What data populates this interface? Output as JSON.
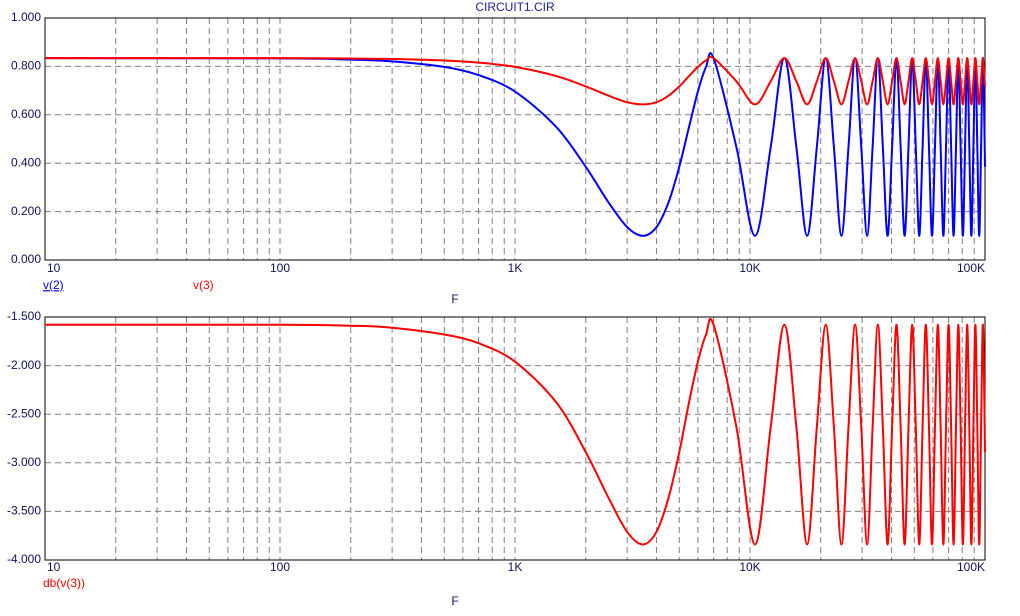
{
  "chart_data": [
    {
      "type": "line",
      "title": "CIRCUIT1.CIR",
      "xlabel": "F",
      "log_x": true,
      "grid": true,
      "xlim": [
        10,
        100000
      ],
      "xticks": [
        {
          "value": 10,
          "label": "10"
        },
        {
          "value": 100,
          "label": "100"
        },
        {
          "value": 1000,
          "label": "1K"
        },
        {
          "value": 10000,
          "label": "10K"
        },
        {
          "value": 100000,
          "label": "100K"
        }
      ],
      "xminorticks": [
        20,
        30,
        40,
        50,
        60,
        70,
        80,
        90,
        200,
        300,
        400,
        500,
        600,
        700,
        800,
        900,
        2000,
        3000,
        4000,
        5000,
        6000,
        7000,
        8000,
        9000,
        20000,
        30000,
        40000,
        50000,
        60000,
        70000,
        80000,
        90000
      ],
      "ylim": [
        0,
        1
      ],
      "yticks": [
        {
          "value": 0,
          "label": "0.000"
        },
        {
          "value": 0.2,
          "label": "0.200"
        },
        {
          "value": 0.4,
          "label": "0.400"
        },
        {
          "value": 0.6,
          "label": "0.600"
        },
        {
          "value": 0.8,
          "label": "0.800"
        },
        {
          "value": 1,
          "label": "1.000"
        }
      ],
      "x": [
        10,
        100,
        200,
        300,
        500,
        700,
        1000,
        1500,
        2000,
        2500,
        3000,
        3500,
        4000,
        4500,
        5000,
        5500,
        6000,
        6500,
        7000,
        8750,
        10500,
        12250,
        14000,
        15750,
        17500,
        19250,
        21000,
        22750,
        24500,
        26250,
        28000,
        29750,
        31500,
        33250,
        35000,
        36750,
        38500,
        40250,
        42000,
        43750,
        45500,
        47250,
        49000,
        50750,
        52500,
        54250,
        56000,
        57750,
        59500,
        61250,
        63000,
        64750,
        66500,
        68250,
        70000,
        71750,
        73500,
        75250,
        77000,
        78750,
        80500,
        82250,
        84000,
        85750,
        87500,
        89250,
        91000,
        92750,
        94500,
        96250,
        98000,
        100000
      ],
      "series": [
        {
          "name": "v(2)",
          "color": "#0000ff",
          "values": [
            0.834,
            0.833,
            0.828,
            0.821,
            0.798,
            0.764,
            0.696,
            0.549,
            0.385,
            0.238,
            0.136,
            0.1,
            0.136,
            0.238,
            0.385,
            0.549,
            0.696,
            0.798,
            0.834,
            0.467,
            0.1,
            0.467,
            0.834,
            0.467,
            0.1,
            0.467,
            0.834,
            0.467,
            0.1,
            0.467,
            0.834,
            0.467,
            0.1,
            0.467,
            0.834,
            0.467,
            0.1,
            0.467,
            0.834,
            0.467,
            0.1,
            0.467,
            0.834,
            0.467,
            0.1,
            0.467,
            0.834,
            0.467,
            0.1,
            0.467,
            0.834,
            0.467,
            0.1,
            0.467,
            0.834,
            0.467,
            0.1,
            0.467,
            0.834,
            0.467,
            0.1,
            0.467,
            0.834,
            0.467,
            0.1,
            0.467,
            0.834,
            0.467,
            0.1,
            0.467,
            0.834,
            0.385
          ]
        },
        {
          "name": "v(3)",
          "color": "#ff0000",
          "values": [
            0.834,
            0.834,
            0.8325,
            0.8306,
            0.8245,
            0.8158,
            0.798,
            0.76,
            0.717,
            0.679,
            0.652,
            0.643,
            0.652,
            0.679,
            0.717,
            0.76,
            0.798,
            0.8245,
            0.834,
            0.7385,
            0.643,
            0.7385,
            0.834,
            0.7385,
            0.643,
            0.7385,
            0.834,
            0.7385,
            0.643,
            0.7385,
            0.834,
            0.7385,
            0.643,
            0.7385,
            0.834,
            0.7385,
            0.643,
            0.7385,
            0.834,
            0.7385,
            0.643,
            0.7385,
            0.834,
            0.7385,
            0.643,
            0.7385,
            0.834,
            0.7385,
            0.643,
            0.7385,
            0.834,
            0.7385,
            0.643,
            0.7385,
            0.834,
            0.7385,
            0.643,
            0.7385,
            0.834,
            0.7385,
            0.643,
            0.7385,
            0.834,
            0.7385,
            0.643,
            0.7385,
            0.834,
            0.7385,
            0.643,
            0.7385,
            0.834,
            0.717
          ]
        }
      ]
    },
    {
      "type": "line",
      "xlabel": "F",
      "log_x": true,
      "grid": true,
      "xlim": [
        10,
        100000
      ],
      "xticks": [
        {
          "value": 10,
          "label": "10"
        },
        {
          "value": 100,
          "label": "100"
        },
        {
          "value": 1000,
          "label": "1K"
        },
        {
          "value": 10000,
          "label": "10K"
        },
        {
          "value": 100000,
          "label": "100K"
        }
      ],
      "xminorticks": [
        20,
        30,
        40,
        50,
        60,
        70,
        80,
        90,
        200,
        300,
        400,
        500,
        600,
        700,
        800,
        900,
        2000,
        3000,
        4000,
        5000,
        6000,
        7000,
        8000,
        9000,
        20000,
        30000,
        40000,
        50000,
        60000,
        70000,
        80000,
        90000
      ],
      "ylim": [
        -4,
        -1.5
      ],
      "yticks": [
        {
          "value": -4,
          "label": "-4.000"
        },
        {
          "value": -3.5,
          "label": "-3.500"
        },
        {
          "value": -3,
          "label": "-3.000"
        },
        {
          "value": -2.5,
          "label": "-2.500"
        },
        {
          "value": -2,
          "label": "-2.000"
        },
        {
          "value": -1.5,
          "label": "-1.500"
        }
      ],
      "x": [
        10,
        100,
        200,
        300,
        500,
        700,
        1000,
        1500,
        2000,
        2500,
        3000,
        3500,
        4000,
        4500,
        5000,
        5500,
        6000,
        6500,
        7000,
        8750,
        10500,
        12250,
        14000,
        15750,
        17500,
        19250,
        21000,
        22750,
        24500,
        26250,
        28000,
        29750,
        31500,
        33250,
        35000,
        36750,
        38500,
        40250,
        42000,
        43750,
        45500,
        47250,
        49000,
        50750,
        52500,
        54250,
        56000,
        57750,
        59500,
        61250,
        63000,
        64750,
        66500,
        68250,
        70000,
        71750,
        73500,
        75250,
        77000,
        78750,
        80500,
        82250,
        84000,
        85750,
        87500,
        89250,
        91000,
        92750,
        94500,
        96250,
        98000,
        100000
      ],
      "series": [
        {
          "name": "db(v(3))",
          "color": "#ff0000",
          "values": [
            -1.58,
            -1.58,
            -1.59,
            -1.61,
            -1.68,
            -1.77,
            -1.96,
            -2.38,
            -2.89,
            -3.36,
            -3.71,
            -3.84,
            -3.71,
            -3.36,
            -2.89,
            -2.38,
            -1.96,
            -1.68,
            -1.58,
            -2.63,
            -3.84,
            -2.63,
            -1.58,
            -2.63,
            -3.84,
            -2.63,
            -1.58,
            -2.63,
            -3.84,
            -2.63,
            -1.58,
            -2.63,
            -3.84,
            -2.63,
            -1.58,
            -2.63,
            -3.84,
            -2.63,
            -1.58,
            -2.63,
            -3.84,
            -2.63,
            -1.58,
            -2.63,
            -3.84,
            -2.63,
            -1.58,
            -2.63,
            -3.84,
            -2.63,
            -1.58,
            -2.63,
            -3.84,
            -2.63,
            -1.58,
            -2.63,
            -3.84,
            -2.63,
            -1.58,
            -2.63,
            -3.84,
            -2.63,
            -1.58,
            -2.63,
            -3.84,
            -2.63,
            -1.58,
            -2.63,
            -3.84,
            -2.63,
            -1.58,
            -2.89
          ]
        }
      ]
    }
  ]
}
